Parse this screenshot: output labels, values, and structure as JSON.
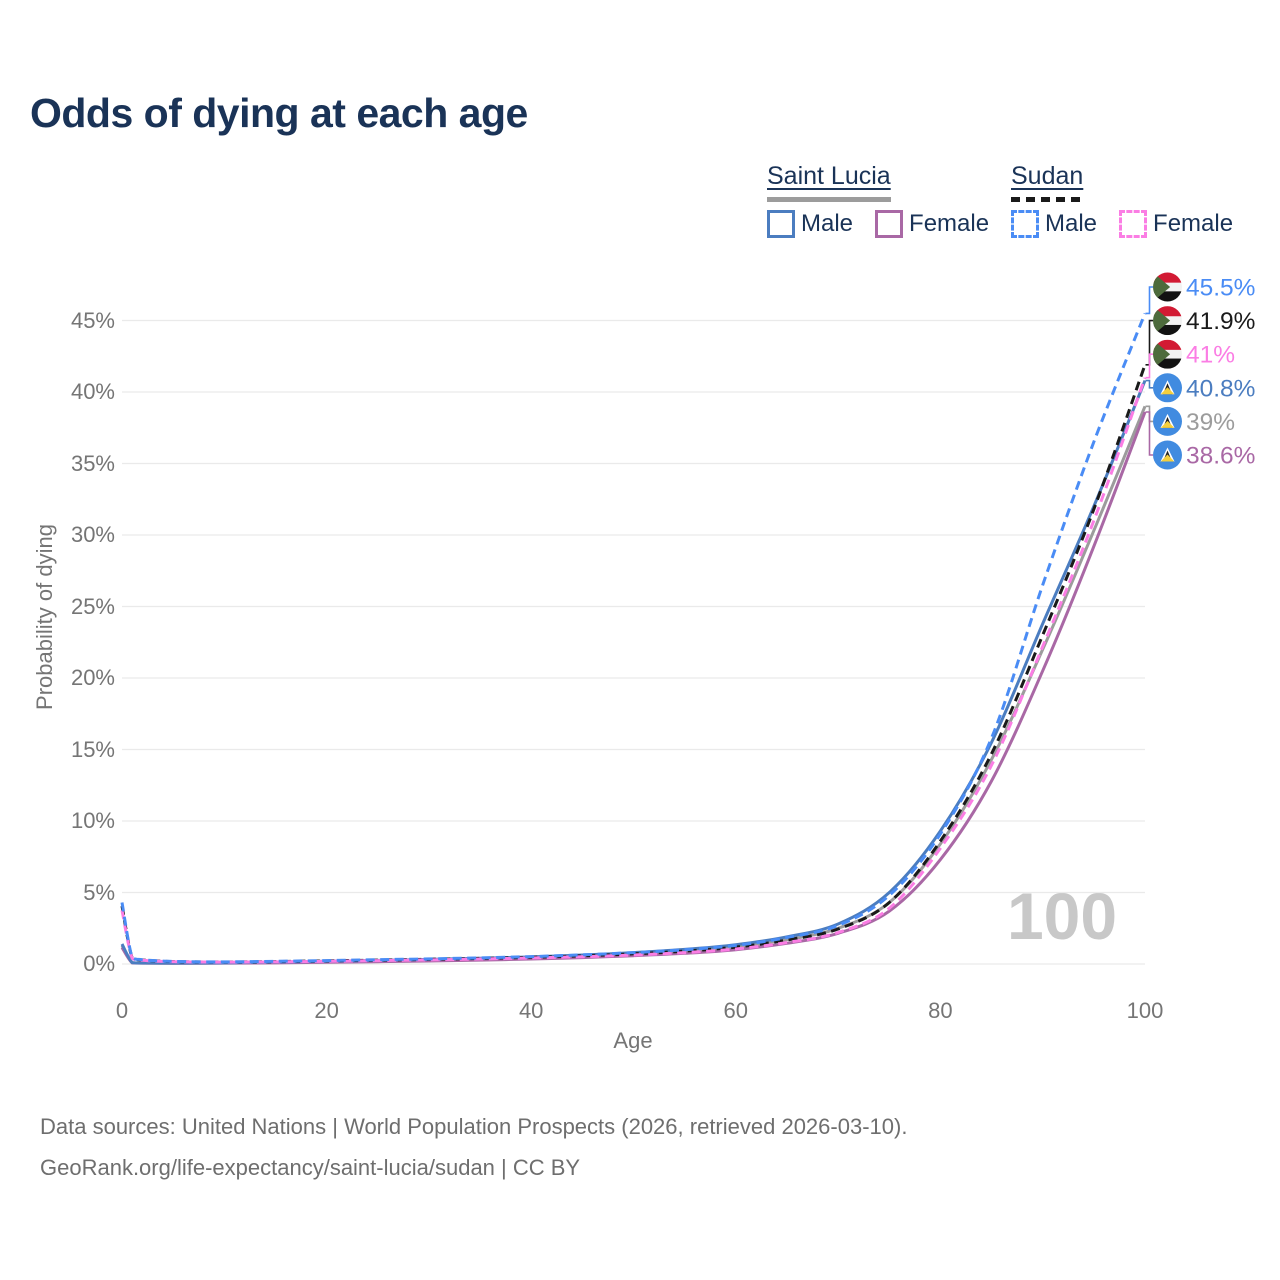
{
  "title": "Odds of dying at each age",
  "colors": {
    "title_navy": "#1a3357",
    "axis_text": "#757575",
    "gridline": "#eaeaea",
    "watermark": "#c8c8c8",
    "footer_text": "#6e6e6e",
    "saint_lucia_line": "#9c9c9c",
    "sudan_line": "#1a1a1a",
    "saint_lucia_male": "#4b7dc0",
    "saint_lucia_female": "#a968a5",
    "sudan_male": "#4a8cf5",
    "sudan_female": "#fb7de4"
  },
  "legend": {
    "groups": [
      {
        "id": "saint-lucia",
        "label": "Saint Lucia",
        "line_style": "solid",
        "line_color": "#9c9c9c",
        "items": [
          {
            "label": "Male",
            "color": "#4b7dc0",
            "dashed": false
          },
          {
            "label": "Female",
            "color": "#a968a5",
            "dashed": false
          }
        ]
      },
      {
        "id": "sudan",
        "label": "Sudan",
        "line_style": "dashed",
        "line_color": "#1a1a1a",
        "items": [
          {
            "label": "Male",
            "color": "#4a8cf5",
            "dashed": true
          },
          {
            "label": "Female",
            "color": "#fb7de4",
            "dashed": true
          }
        ]
      }
    ]
  },
  "chart_data": {
    "type": "line",
    "title": "Odds of dying at each age",
    "xlabel": "Age",
    "ylabel": "Probability of dying",
    "xlim": [
      0,
      100
    ],
    "ylim_percent": [
      0,
      47.5
    ],
    "xticks": [
      0,
      20,
      40,
      60,
      80,
      100
    ],
    "xtick_labels": [
      "0",
      "20",
      "40",
      "60",
      "80",
      "100"
    ],
    "yticks_percent": [
      0,
      5,
      10,
      15,
      20,
      25,
      30,
      35,
      40,
      45
    ],
    "ytick_labels": [
      "0%",
      "5%",
      "10%",
      "15%",
      "20%",
      "25%",
      "30%",
      "35%",
      "40%",
      "45%"
    ],
    "grid": "horizontal",
    "legend_position": "top-right",
    "watermark": "100",
    "ages": [
      0,
      1,
      2,
      5,
      10,
      15,
      20,
      25,
      30,
      35,
      40,
      45,
      50,
      55,
      60,
      65,
      70,
      75,
      80,
      85,
      90,
      95,
      100
    ],
    "series": [
      {
        "id": "sudan-male",
        "name": "Sudan Male",
        "country": "Sudan",
        "sex": "male",
        "flag": "sudan",
        "style": "dashed",
        "color": "#4a8cf5",
        "end_label": "45.5%",
        "end_value_percent": 45.5,
        "values_percent": [
          4.3,
          0.45,
          0.3,
          0.18,
          0.15,
          0.19,
          0.24,
          0.3,
          0.36,
          0.43,
          0.52,
          0.64,
          0.8,
          1.0,
          1.3,
          1.85,
          2.7,
          4.8,
          9.1,
          15.8,
          26.5,
          36.5,
          45.5
        ]
      },
      {
        "id": "sudan-all",
        "name": "Sudan",
        "country": "Sudan",
        "sex": "both",
        "flag": "sudan",
        "style": "dashed",
        "color": "#1a1a1a",
        "end_label": "41.9%",
        "end_value_percent": 41.9,
        "values_percent": [
          4.05,
          0.42,
          0.28,
          0.17,
          0.14,
          0.17,
          0.22,
          0.27,
          0.33,
          0.39,
          0.47,
          0.57,
          0.71,
          0.9,
          1.18,
          1.68,
          2.45,
          4.3,
          8.6,
          14.7,
          23.0,
          31.8,
          41.9
        ]
      },
      {
        "id": "sudan-female",
        "name": "Sudan Female",
        "country": "Sudan",
        "sex": "female",
        "flag": "sudan",
        "style": "dashed",
        "color": "#fb7de4",
        "end_label": "41%",
        "end_value_percent": 41.0,
        "values_percent": [
          3.75,
          0.4,
          0.26,
          0.16,
          0.13,
          0.15,
          0.19,
          0.24,
          0.29,
          0.35,
          0.42,
          0.51,
          0.63,
          0.8,
          1.05,
          1.5,
          2.2,
          3.9,
          8.1,
          13.9,
          22.2,
          31.0,
          41.0
        ]
      },
      {
        "id": "saint-lucia-male",
        "name": "Saint Lucia Male",
        "country": "Saint Lucia",
        "sex": "male",
        "flag": "saint-lucia",
        "style": "solid",
        "color": "#4b7dc0",
        "end_label": "40.8%",
        "end_value_percent": 40.8,
        "values_percent": [
          1.4,
          0.1,
          0.07,
          0.06,
          0.08,
          0.13,
          0.19,
          0.25,
          0.32,
          0.4,
          0.5,
          0.63,
          0.8,
          1.02,
          1.35,
          1.9,
          2.8,
          5.0,
          9.3,
          15.5,
          23.8,
          32.0,
          40.8
        ]
      },
      {
        "id": "saint-lucia-all",
        "name": "Saint Lucia",
        "country": "Saint Lucia",
        "sex": "both",
        "flag": "saint-lucia",
        "style": "solid",
        "color": "#9c9c9c",
        "end_label": "39%",
        "end_value_percent": 39.0,
        "values_percent": [
          1.28,
          0.09,
          0.065,
          0.055,
          0.07,
          0.11,
          0.16,
          0.21,
          0.27,
          0.34,
          0.43,
          0.55,
          0.7,
          0.9,
          1.18,
          1.7,
          2.5,
          4.3,
          8.4,
          14.3,
          22.0,
          30.3,
          39.0
        ]
      },
      {
        "id": "saint-lucia-female",
        "name": "Saint Lucia Female",
        "country": "Saint Lucia",
        "sex": "female",
        "flag": "saint-lucia",
        "style": "solid",
        "color": "#a968a5",
        "end_label": "38.6%",
        "end_value_percent": 38.6,
        "values_percent": [
          1.15,
          0.08,
          0.06,
          0.05,
          0.06,
          0.08,
          0.12,
          0.16,
          0.21,
          0.27,
          0.35,
          0.45,
          0.58,
          0.75,
          1.0,
          1.45,
          2.15,
          3.7,
          7.3,
          12.8,
          20.5,
          29.2,
          38.6
        ]
      }
    ]
  },
  "footer": {
    "line1": "Data sources: United Nations | World Population Prospects (2026, retrieved 2026-03-10).",
    "line2": "GeoRank.org/life-expectancy/saint-lucia/sudan | CC BY"
  }
}
